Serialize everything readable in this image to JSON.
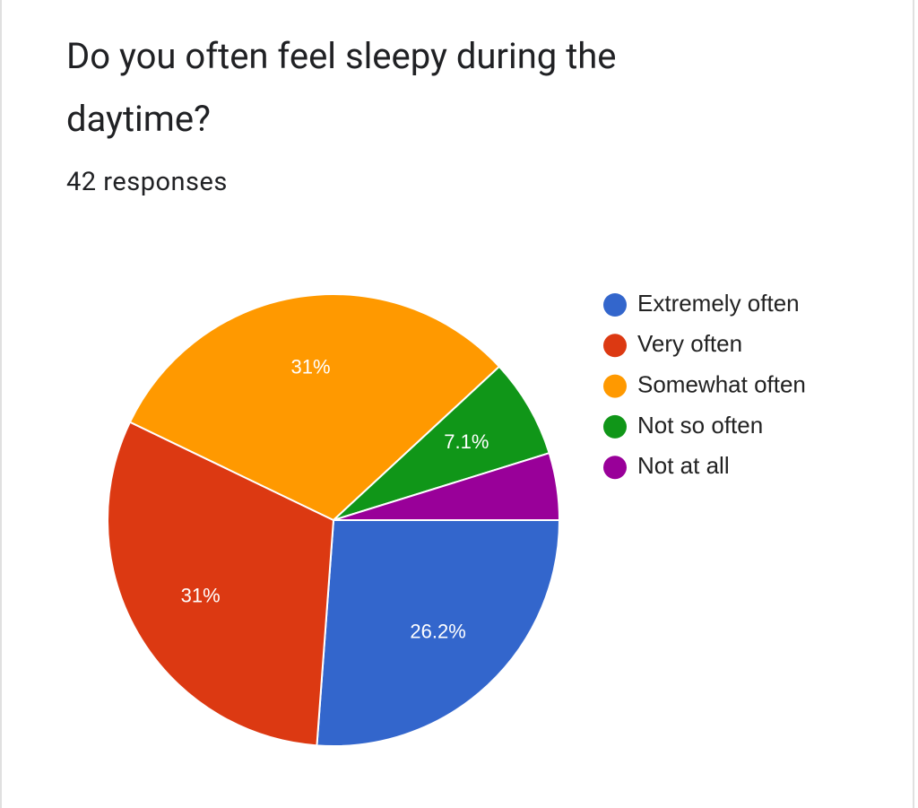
{
  "chart_data": {
    "type": "pie",
    "title": "Do you often feel sleepy during the daytime?",
    "subtitle": "42 responses",
    "categories": [
      "Extremely often",
      "Very often",
      "Somewhat often",
      "Not so often",
      "Not at all"
    ],
    "values": [
      26.2,
      31,
      31,
      7.1,
      4.8
    ],
    "value_labels": [
      "26.2%",
      "31%",
      "31%",
      "7.1%",
      null
    ],
    "colors": [
      "#3366cc",
      "#dc3912",
      "#ff9900",
      "#109618",
      "#990099"
    ],
    "legend": "right"
  }
}
